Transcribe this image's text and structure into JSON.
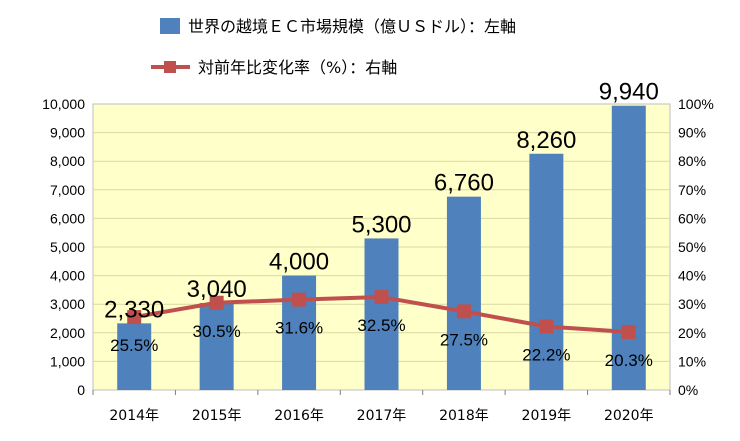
{
  "chart_data": {
    "type": "bar",
    "categories": [
      "2014年",
      "2015年",
      "2016年",
      "2017年",
      "2018年",
      "2019年",
      "2020年"
    ],
    "series": [
      {
        "name": "世界の越境ＥＣ市場規模（億ＵＳドル）：左軸",
        "type": "bar",
        "axis": "left",
        "values": [
          2330,
          3040,
          4000,
          5300,
          6760,
          8260,
          9940
        ],
        "labels": [
          "2,330",
          "3,040",
          "4,000",
          "5,300",
          "6,760",
          "8,260",
          "9,940"
        ]
      },
      {
        "name": "対前年比変化率（%）：右軸",
        "type": "line",
        "axis": "right",
        "values": [
          25.5,
          30.5,
          31.6,
          32.5,
          27.5,
          22.2,
          20.3
        ],
        "labels": [
          "25.5%",
          "30.5%",
          "31.6%",
          "32.5%",
          "27.5%",
          "22.2%",
          "20.3%"
        ]
      }
    ],
    "left_axis": {
      "ylim": [
        0,
        10000
      ],
      "ticks": [
        "0",
        "1,000",
        "2,000",
        "3,000",
        "4,000",
        "5,000",
        "6,000",
        "7,000",
        "8,000",
        "9,000",
        "10,000"
      ]
    },
    "right_axis": {
      "ylim": [
        0,
        100
      ],
      "ticks": [
        "0%",
        "10%",
        "20%",
        "30%",
        "40%",
        "50%",
        "60%",
        "70%",
        "80%",
        "90%",
        "100%"
      ]
    },
    "legend_position": "top",
    "colors": {
      "bar": "#4f81bd",
      "line": "#c0504d",
      "plot_background": "#ffffc9"
    }
  }
}
